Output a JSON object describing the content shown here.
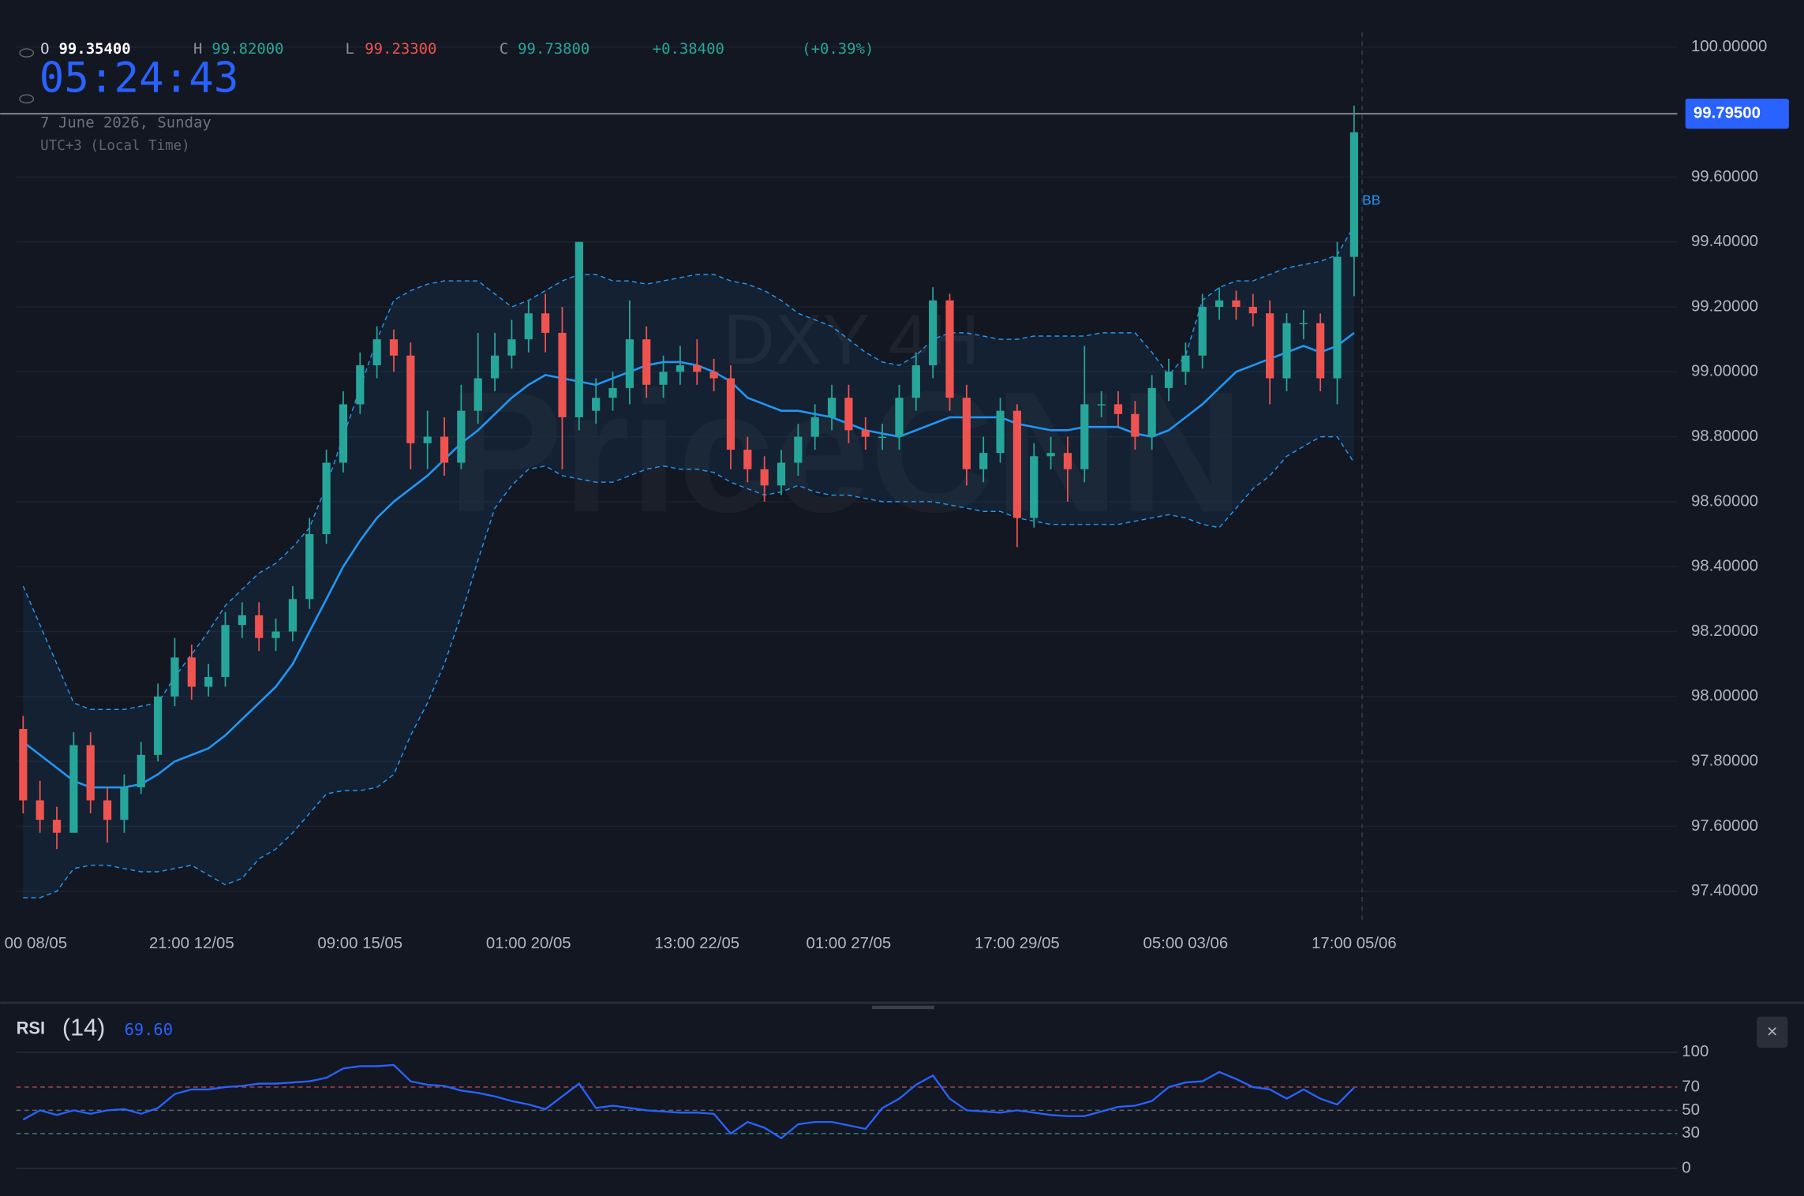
{
  "header": {
    "o_label": "O",
    "open": "99.35400",
    "h_label": "H",
    "high": "99.82000",
    "l_label": "L",
    "low": "99.23300",
    "c_label": "C",
    "close": "99.73800",
    "change": "+0.38400",
    "change_pct": "(+0.39%)",
    "clock": "05:24:43",
    "date": "7 June 2026, Sunday",
    "timezone": "UTC+3 (Local Time)",
    "close_button": "×"
  },
  "chart_data": [
    {
      "type": "candlestick",
      "watermark": [
        "DXY 4H",
        "PriceCNN"
      ],
      "up_color": "#26a69a",
      "down_color": "#ef5350",
      "categories": [
        "00 08/05",
        null,
        null,
        null,
        null,
        null,
        null,
        null,
        null,
        null,
        "21:00 12/05",
        null,
        null,
        null,
        null,
        null,
        null,
        null,
        null,
        null,
        "09:00 15/05",
        null,
        null,
        null,
        null,
        null,
        null,
        null,
        null,
        null,
        "01:00 20/05",
        null,
        null,
        null,
        null,
        null,
        null,
        null,
        null,
        null,
        "13:00 22/05",
        null,
        null,
        null,
        null,
        null,
        null,
        null,
        null,
        "01:00 27/05",
        null,
        null,
        null,
        null,
        null,
        null,
        null,
        null,
        null,
        "17:00 29/05",
        null,
        null,
        null,
        null,
        null,
        null,
        null,
        null,
        null,
        "05:00 03/06",
        null,
        null,
        null,
        null,
        null,
        null,
        null,
        null,
        null,
        "17:00 05/06"
      ],
      "open": [
        97.9,
        97.68,
        97.62,
        97.58,
        97.85,
        97.68,
        97.62,
        97.72,
        97.82,
        98.0,
        98.12,
        98.03,
        98.06,
        98.22,
        98.25,
        98.18,
        98.2,
        98.3,
        98.5,
        98.72,
        98.9,
        99.02,
        99.1,
        99.05,
        98.78,
        98.8,
        98.72,
        98.88,
        98.98,
        99.05,
        99.1,
        99.18,
        99.12,
        98.86,
        98.88,
        98.92,
        98.95,
        99.1,
        98.96,
        99.0,
        99.02,
        99.0,
        98.98,
        98.76,
        98.7,
        98.65,
        98.72,
        98.8,
        98.86,
        98.92,
        98.82,
        98.8,
        98.8,
        98.92,
        99.02,
        99.22,
        98.92,
        98.7,
        98.75,
        98.88,
        98.55,
        98.74,
        98.75,
        98.7,
        98.9,
        98.9,
        98.87,
        98.8,
        98.95,
        99.0,
        99.05,
        99.2,
        99.22,
        99.2,
        99.18,
        98.98,
        99.15,
        99.15,
        98.98,
        99.354
      ],
      "high": [
        97.94,
        97.74,
        97.66,
        97.89,
        97.89,
        97.72,
        97.76,
        97.86,
        98.04,
        98.18,
        98.16,
        98.1,
        98.26,
        98.29,
        98.29,
        98.24,
        98.34,
        98.55,
        98.76,
        98.94,
        99.06,
        99.14,
        99.13,
        99.09,
        98.88,
        98.86,
        98.96,
        99.12,
        99.12,
        99.16,
        99.22,
        99.24,
        99.2,
        99.4,
        98.98,
        99.0,
        99.22,
        99.14,
        99.05,
        99.08,
        99.1,
        99.04,
        99.02,
        98.8,
        98.74,
        98.76,
        98.84,
        98.9,
        98.96,
        98.96,
        98.86,
        98.84,
        98.96,
        99.06,
        99.26,
        99.24,
        98.96,
        98.8,
        98.92,
        98.9,
        98.78,
        98.8,
        98.8,
        99.08,
        98.94,
        98.94,
        98.91,
        98.99,
        99.04,
        99.09,
        99.24,
        99.26,
        99.25,
        99.24,
        99.22,
        99.18,
        99.19,
        99.18,
        99.4,
        99.82
      ],
      "low": [
        97.64,
        97.58,
        97.53,
        97.58,
        97.64,
        97.55,
        97.58,
        97.7,
        97.8,
        97.97,
        97.99,
        98.0,
        98.03,
        98.18,
        98.14,
        98.14,
        98.17,
        98.27,
        98.47,
        98.69,
        98.87,
        98.98,
        99.0,
        98.7,
        98.7,
        98.68,
        98.7,
        98.84,
        98.94,
        99.01,
        99.06,
        99.06,
        98.7,
        98.82,
        98.84,
        98.88,
        98.9,
        98.92,
        98.92,
        98.96,
        98.96,
        98.94,
        98.7,
        98.66,
        98.6,
        98.62,
        98.68,
        98.76,
        98.82,
        98.78,
        98.76,
        98.76,
        98.76,
        98.88,
        98.98,
        98.88,
        98.65,
        98.66,
        98.72,
        98.46,
        98.52,
        98.7,
        98.6,
        98.66,
        98.86,
        98.83,
        98.76,
        98.76,
        98.91,
        98.96,
        99.01,
        99.16,
        99.16,
        99.14,
        98.9,
        98.94,
        99.1,
        98.94,
        98.9,
        99.233
      ],
      "close": [
        97.68,
        97.62,
        97.58,
        97.85,
        97.68,
        97.62,
        97.72,
        97.82,
        98.0,
        98.12,
        98.03,
        98.06,
        98.22,
        98.25,
        98.18,
        98.2,
        98.3,
        98.5,
        98.72,
        98.9,
        99.02,
        99.1,
        99.05,
        98.78,
        98.8,
        98.72,
        98.88,
        98.98,
        99.05,
        99.1,
        99.18,
        99.12,
        98.86,
        99.4,
        98.92,
        98.95,
        99.1,
        98.96,
        99.0,
        99.02,
        99.0,
        98.98,
        98.76,
        98.7,
        98.65,
        98.72,
        98.8,
        98.86,
        98.92,
        98.82,
        98.8,
        98.8,
        98.92,
        99.02,
        99.22,
        98.92,
        98.7,
        98.75,
        98.88,
        98.55,
        98.74,
        98.75,
        98.7,
        98.9,
        98.9,
        98.87,
        98.8,
        98.95,
        99.0,
        99.05,
        99.2,
        99.22,
        99.2,
        99.18,
        98.98,
        99.15,
        99.15,
        98.98,
        99.354,
        99.738
      ],
      "bands": {
        "name": "BB",
        "color": "#2196f3",
        "middle": [
          97.86,
          97.82,
          97.78,
          97.74,
          97.72,
          97.72,
          97.72,
          97.73,
          97.76,
          97.8,
          97.82,
          97.84,
          97.88,
          97.93,
          97.98,
          98.03,
          98.1,
          98.2,
          98.3,
          98.4,
          98.48,
          98.55,
          98.6,
          98.64,
          98.68,
          98.73,
          98.78,
          98.82,
          98.87,
          98.92,
          98.96,
          98.99,
          98.98,
          98.97,
          98.96,
          98.98,
          99.0,
          99.02,
          99.03,
          99.03,
          99.02,
          99.0,
          98.97,
          98.92,
          98.9,
          98.88,
          98.88,
          98.87,
          98.86,
          98.84,
          98.82,
          98.81,
          98.8,
          98.82,
          98.84,
          98.86,
          98.86,
          98.86,
          98.86,
          98.84,
          98.83,
          98.82,
          98.82,
          98.83,
          98.83,
          98.83,
          98.81,
          98.8,
          98.82,
          98.86,
          98.9,
          98.95,
          99.0,
          99.02,
          99.04,
          99.06,
          99.08,
          99.06,
          99.08,
          99.12
        ],
        "upper": [
          98.34,
          98.22,
          98.1,
          97.98,
          97.96,
          97.96,
          97.96,
          97.97,
          97.98,
          98.06,
          98.13,
          98.2,
          98.28,
          98.33,
          98.38,
          98.41,
          98.46,
          98.52,
          98.65,
          98.8,
          98.95,
          99.1,
          99.22,
          99.25,
          99.27,
          99.28,
          99.28,
          99.28,
          99.24,
          99.2,
          99.22,
          99.25,
          99.28,
          99.3,
          99.3,
          99.28,
          99.28,
          99.27,
          99.28,
          99.29,
          99.3,
          99.3,
          99.28,
          99.27,
          99.25,
          99.22,
          99.18,
          99.16,
          99.14,
          99.1,
          99.06,
          99.03,
          99.02,
          99.05,
          99.1,
          99.12,
          99.12,
          99.11,
          99.1,
          99.1,
          99.11,
          99.11,
          99.11,
          99.11,
          99.12,
          99.12,
          99.12,
          99.06,
          98.99,
          99.05,
          99.22,
          99.26,
          99.28,
          99.28,
          99.3,
          99.32,
          99.33,
          99.34,
          99.36,
          99.45
        ],
        "lower": [
          97.38,
          97.38,
          97.4,
          97.47,
          97.48,
          97.48,
          97.47,
          97.46,
          97.46,
          97.47,
          97.48,
          97.45,
          97.42,
          97.44,
          97.5,
          97.53,
          97.58,
          97.64,
          97.7,
          97.71,
          97.71,
          97.72,
          97.76,
          97.88,
          97.98,
          98.1,
          98.25,
          98.42,
          98.58,
          98.65,
          98.7,
          98.71,
          98.68,
          98.67,
          98.66,
          98.66,
          98.68,
          98.7,
          98.71,
          98.7,
          98.7,
          98.69,
          98.66,
          98.64,
          98.62,
          98.63,
          98.65,
          98.63,
          98.62,
          98.62,
          98.61,
          98.6,
          98.6,
          98.6,
          98.6,
          98.59,
          98.58,
          98.57,
          98.57,
          98.55,
          98.54,
          98.53,
          98.53,
          98.53,
          98.53,
          98.53,
          98.54,
          98.55,
          98.56,
          98.55,
          98.53,
          98.52,
          98.58,
          98.64,
          98.68,
          98.74,
          98.77,
          98.8,
          98.8,
          98.72
        ]
      },
      "ylim": [
        97.4,
        100
      ],
      "yticks": [
        {
          "value": 97.4,
          "label": "97.40000"
        },
        {
          "value": 97.6,
          "label": "97.60000"
        },
        {
          "value": 97.8,
          "label": "97.80000"
        },
        {
          "value": 98,
          "label": "98.00000"
        },
        {
          "value": 98.2,
          "label": "98.20000"
        },
        {
          "value": 98.4,
          "label": "98.40000"
        },
        {
          "value": 98.6,
          "label": "98.60000"
        },
        {
          "value": 98.8,
          "label": "98.80000"
        },
        {
          "value": 99,
          "label": "99.00000"
        },
        {
          "value": 99.2,
          "label": "99.20000"
        },
        {
          "value": 99.4,
          "label": "99.40000"
        },
        {
          "value": 99.6,
          "label": "99.60000"
        },
        {
          "value": 100,
          "label": "100.00000"
        }
      ],
      "last_price": 99.795,
      "last_price_label": "99.79500",
      "grid": true
    },
    {
      "type": "line",
      "title": "RSI",
      "period_label": "(14)",
      "color": "#2962ff",
      "values": [
        42,
        50,
        46,
        50,
        47,
        50,
        51,
        47,
        52,
        64,
        68,
        68,
        70,
        71,
        73,
        73,
        74,
        75,
        78,
        86,
        88,
        88,
        89,
        75,
        72,
        71,
        67,
        65,
        62,
        58,
        55,
        51,
        62,
        73,
        52,
        54,
        52,
        50,
        49,
        48,
        48,
        47,
        30,
        40,
        35,
        26,
        38,
        40,
        40,
        37,
        34,
        52,
        60,
        72,
        80,
        60,
        50,
        49,
        48,
        50,
        48,
        46,
        45,
        45,
        49,
        53,
        54,
        58,
        70,
        74,
        75,
        83,
        77,
        70,
        68,
        60,
        68,
        60,
        55,
        69.6
      ],
      "last_value_label": "69.60",
      "ylim": [
        0,
        100
      ],
      "yticks": [
        0,
        30,
        50,
        70,
        100
      ],
      "levels": [
        {
          "value": 70,
          "color": "#b24a52"
        },
        {
          "value": 50,
          "color": "#5d6470"
        },
        {
          "value": 30,
          "color": "#2d7f86"
        }
      ]
    }
  ]
}
